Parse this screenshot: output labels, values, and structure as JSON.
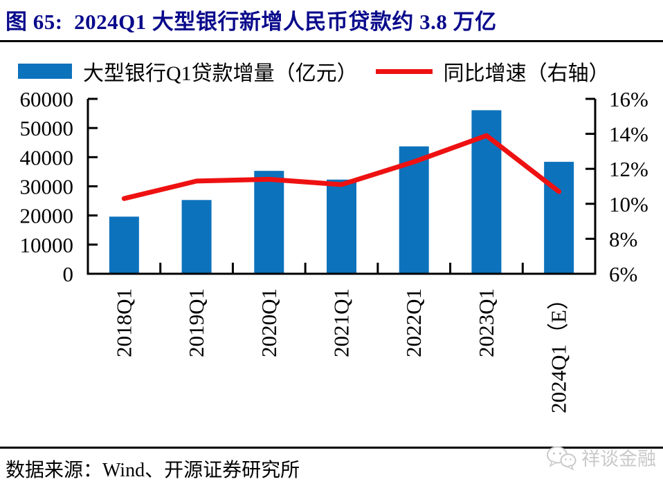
{
  "header": {
    "title": "图 65:  2024Q1 大型银行新增人民币贷款约 3.8 万亿",
    "title_color": "#0A0A8C"
  },
  "chart_data": {
    "type": "bar+line",
    "title": "2024Q1 大型银行新增人民币贷款约 3.8 万亿",
    "categories": [
      "2018Q1",
      "2019Q1",
      "2020Q1",
      "2021Q1",
      "2022Q1",
      "2023Q1",
      "2024Q1（E）"
    ],
    "series": [
      {
        "name": "大型银行Q1贷款增量（亿元）",
        "type": "bar",
        "axis": "left",
        "color": "#0D72BC",
        "values": [
          19600,
          25300,
          35300,
          32300,
          43700,
          56100,
          38400
        ]
      },
      {
        "name": "同比增速（右轴）",
        "type": "line",
        "axis": "right",
        "color": "#EE1111",
        "values": [
          10.3,
          11.3,
          11.4,
          11.1,
          12.4,
          13.9,
          10.7
        ]
      }
    ],
    "left_axis": {
      "min": 0,
      "max": 60000,
      "step": 10000,
      "tick_labels": [
        "0",
        "10000",
        "20000",
        "30000",
        "40000",
        "50000",
        "60000"
      ]
    },
    "right_axis": {
      "min": 6,
      "max": 16,
      "step": 2,
      "tick_labels": [
        "6%",
        "8%",
        "10%",
        "12%",
        "14%",
        "16%"
      ]
    },
    "grid": false,
    "legend_position": "top"
  },
  "footer": {
    "source": "数据来源：Wind、开源证券研究所",
    "watermark": "祥谈金融"
  }
}
